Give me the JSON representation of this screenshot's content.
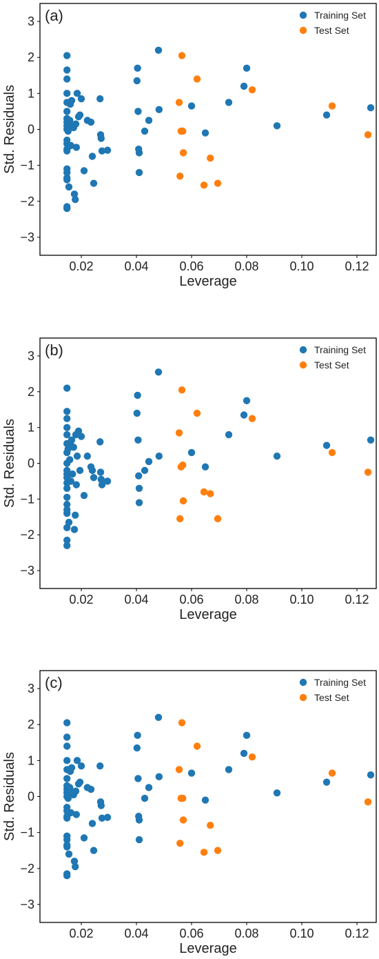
{
  "colors": {
    "training": "#1f77b4",
    "test": "#ff7f0e",
    "axis": "#000000"
  },
  "chart_data": [
    {
      "type": "scatter",
      "panel_label": "(a)",
      "xlabel": "Leverage",
      "ylabel": "Std. Residuals",
      "xlim": [
        0.005,
        0.127
      ],
      "ylim": [
        -3.5,
        3.5
      ],
      "xticks": [
        0.02,
        0.04,
        0.06,
        0.08,
        0.1,
        0.12
      ],
      "xtick_labels": [
        "0.02",
        "0.04",
        "0.06",
        "0.08",
        "0.10",
        "0.12"
      ],
      "yticks": [
        -3,
        -2,
        -1,
        0,
        1,
        2,
        3
      ],
      "ytick_labels": [
        "−3",
        "−2",
        "−1",
        "0",
        "1",
        "2",
        "3"
      ],
      "grid": false,
      "legend_position": "top-right",
      "series": [
        {
          "name": "Training Set",
          "color_key": "training",
          "x": [
            0.0148,
            0.0148,
            0.0148,
            0.0148,
            0.0148,
            0.0148,
            0.0148,
            0.0148,
            0.0148,
            0.0148,
            0.0148,
            0.0148,
            0.0148,
            0.0148,
            0.0148,
            0.0148,
            0.0148,
            0.0148,
            0.0148,
            0.0148,
            0.0152,
            0.0155,
            0.0158,
            0.016,
            0.0162,
            0.0165,
            0.0168,
            0.0172,
            0.0175,
            0.0178,
            0.018,
            0.0182,
            0.0185,
            0.019,
            0.0195,
            0.02,
            0.021,
            0.0222,
            0.0235,
            0.024,
            0.0245,
            0.0268,
            0.027,
            0.0272,
            0.0275,
            0.0295,
            0.0402,
            0.0404,
            0.0406,
            0.0408,
            0.041,
            0.041,
            0.043,
            0.0445,
            0.048,
            0.0482,
            0.06,
            0.065,
            0.0735,
            0.079,
            0.08,
            0.091,
            0.109,
            0.125
          ],
          "y": [
            2.05,
            1.65,
            1.4,
            1.0,
            0.75,
            0.5,
            0.3,
            0.2,
            0.1,
            0.0,
            -0.3,
            -0.4,
            -0.55,
            -0.6,
            -1.1,
            -1.2,
            -1.35,
            -1.4,
            -2.2,
            -2.15,
            -0.05,
            -1.6,
            0.25,
            0.7,
            -0.45,
            0.8,
            0.1,
            0.05,
            -1.8,
            -1.95,
            0.15,
            -0.5,
            1.0,
            0.35,
            0.4,
            0.85,
            -1.15,
            0.25,
            0.2,
            -0.75,
            -1.5,
            0.85,
            -0.15,
            -0.25,
            -0.6,
            -0.58,
            1.35,
            1.7,
            0.5,
            -0.55,
            -0.65,
            -1.2,
            -0.05,
            0.25,
            2.2,
            0.55,
            0.65,
            -0.1,
            0.75,
            1.2,
            1.7,
            0.1,
            0.4,
            0.6
          ]
        },
        {
          "name": "Test Set",
          "color_key": "test",
          "x": [
            0.0555,
            0.0558,
            0.0562,
            0.0565,
            0.0568,
            0.057,
            0.062,
            0.0645,
            0.0668,
            0.0695,
            0.082,
            0.111,
            0.124
          ],
          "y": [
            0.75,
            -1.3,
            -0.05,
            2.05,
            -0.05,
            -0.65,
            1.4,
            -1.55,
            -0.8,
            -1.5,
            1.1,
            0.65,
            -0.15
          ]
        }
      ]
    },
    {
      "type": "scatter",
      "panel_label": "(b)",
      "xlabel": "Leverage",
      "ylabel": "Std. Residuals",
      "xlim": [
        0.005,
        0.127
      ],
      "ylim": [
        -3.5,
        3.5
      ],
      "xticks": [
        0.02,
        0.04,
        0.06,
        0.08,
        0.1,
        0.12
      ],
      "xtick_labels": [
        "0.02",
        "0.04",
        "0.06",
        "0.08",
        "0.10",
        "0.12"
      ],
      "yticks": [
        -3,
        -2,
        -1,
        0,
        1,
        2,
        3
      ],
      "ytick_labels": [
        "−3",
        "−2",
        "−1",
        "0",
        "1",
        "2",
        "3"
      ],
      "grid": false,
      "legend_position": "top-right",
      "series": [
        {
          "name": "Training Set",
          "color_key": "training",
          "x": [
            0.0148,
            0.0148,
            0.0148,
            0.0148,
            0.0148,
            0.0148,
            0.0148,
            0.0148,
            0.0148,
            0.0148,
            0.0148,
            0.0148,
            0.0148,
            0.0148,
            0.0148,
            0.0148,
            0.0148,
            0.0148,
            0.0148,
            0.0148,
            0.0152,
            0.0155,
            0.0158,
            0.016,
            0.0162,
            0.0165,
            0.0168,
            0.0172,
            0.0175,
            0.0178,
            0.018,
            0.0182,
            0.0185,
            0.019,
            0.0195,
            0.02,
            0.021,
            0.0222,
            0.0235,
            0.024,
            0.0245,
            0.0268,
            0.027,
            0.0272,
            0.0275,
            0.0295,
            0.0402,
            0.0404,
            0.0406,
            0.0408,
            0.041,
            0.041,
            0.043,
            0.0445,
            0.048,
            0.0482,
            0.06,
            0.065,
            0.0735,
            0.079,
            0.08,
            0.091,
            0.109,
            0.125
          ],
          "y": [
            2.1,
            1.45,
            1.25,
            1.0,
            0.8,
            0.55,
            0.3,
            0.0,
            -0.2,
            -0.3,
            -0.4,
            -0.55,
            -0.7,
            -0.95,
            -1.15,
            -1.3,
            -1.4,
            -1.8,
            -2.15,
            -2.3,
            0.4,
            -1.65,
            0.1,
            0.55,
            -0.5,
            0.65,
            -0.3,
            0.45,
            -1.85,
            -1.45,
            0.8,
            -0.6,
            0.2,
            0.9,
            -0.2,
            0.75,
            -0.9,
            0.2,
            -0.1,
            -0.2,
            -0.4,
            0.6,
            -0.25,
            -0.45,
            -0.6,
            -0.5,
            1.4,
            1.9,
            0.65,
            -0.35,
            -0.7,
            -1.1,
            -0.2,
            0.05,
            2.55,
            0.2,
            0.3,
            -0.1,
            0.8,
            1.35,
            1.75,
            0.2,
            0.5,
            0.65
          ]
        },
        {
          "name": "Test Set",
          "color_key": "test",
          "x": [
            0.0555,
            0.0558,
            0.0562,
            0.0565,
            0.0568,
            0.057,
            0.062,
            0.0645,
            0.0668,
            0.0695,
            0.082,
            0.111,
            0.124
          ],
          "y": [
            0.85,
            -1.55,
            -0.1,
            2.05,
            -0.05,
            -1.05,
            1.4,
            -0.8,
            -0.85,
            -1.55,
            1.25,
            0.3,
            -0.25
          ]
        }
      ]
    },
    {
      "type": "scatter",
      "panel_label": "(c)",
      "xlabel": "Leverage",
      "ylabel": "Std. Residuals",
      "xlim": [
        0.005,
        0.127
      ],
      "ylim": [
        -3.5,
        3.5
      ],
      "xticks": [
        0.02,
        0.04,
        0.06,
        0.08,
        0.1,
        0.12
      ],
      "xtick_labels": [
        "0.02",
        "0.04",
        "0.06",
        "0.08",
        "0.10",
        "0.12"
      ],
      "yticks": [
        -3,
        -2,
        -1,
        0,
        1,
        2,
        3
      ],
      "ytick_labels": [
        "−3",
        "−2",
        "−1",
        "0",
        "1",
        "2",
        "3"
      ],
      "grid": false,
      "legend_position": "top-right",
      "series": [
        {
          "name": "Training Set",
          "color_key": "training",
          "x": [
            0.0148,
            0.0148,
            0.0148,
            0.0148,
            0.0148,
            0.0148,
            0.0148,
            0.0148,
            0.0148,
            0.0148,
            0.0148,
            0.0148,
            0.0148,
            0.0148,
            0.0148,
            0.0148,
            0.0148,
            0.0148,
            0.0148,
            0.0148,
            0.0152,
            0.0155,
            0.0158,
            0.016,
            0.0162,
            0.0165,
            0.0168,
            0.0172,
            0.0175,
            0.0178,
            0.018,
            0.0182,
            0.0185,
            0.019,
            0.0195,
            0.02,
            0.021,
            0.0222,
            0.0235,
            0.024,
            0.0245,
            0.0268,
            0.027,
            0.0272,
            0.0275,
            0.0295,
            0.0402,
            0.0404,
            0.0406,
            0.0408,
            0.041,
            0.041,
            0.043,
            0.0445,
            0.048,
            0.0482,
            0.06,
            0.065,
            0.0735,
            0.079,
            0.08,
            0.091,
            0.109,
            0.125
          ],
          "y": [
            2.05,
            1.65,
            1.4,
            1.0,
            0.75,
            0.5,
            0.3,
            0.2,
            0.1,
            0.0,
            -0.3,
            -0.4,
            -0.55,
            -0.6,
            -1.1,
            -1.2,
            -1.35,
            -1.4,
            -2.2,
            -2.15,
            -0.05,
            -1.6,
            0.25,
            0.7,
            -0.45,
            0.8,
            0.1,
            0.05,
            -1.8,
            -1.95,
            0.15,
            -0.5,
            1.0,
            0.35,
            0.4,
            0.85,
            -1.15,
            0.25,
            0.2,
            -0.75,
            -1.5,
            0.85,
            -0.15,
            -0.25,
            -0.6,
            -0.58,
            1.35,
            1.7,
            0.5,
            -0.55,
            -0.65,
            -1.2,
            -0.05,
            0.25,
            2.2,
            0.55,
            0.65,
            -0.1,
            0.75,
            1.2,
            1.7,
            0.1,
            0.4,
            0.6
          ]
        },
        {
          "name": "Test Set",
          "color_key": "test",
          "x": [
            0.0555,
            0.0558,
            0.0562,
            0.0565,
            0.0568,
            0.057,
            0.062,
            0.0645,
            0.0668,
            0.0695,
            0.082,
            0.111,
            0.124
          ],
          "y": [
            0.75,
            -1.3,
            -0.05,
            2.05,
            -0.05,
            -0.65,
            1.4,
            -1.55,
            -0.8,
            -1.5,
            1.1,
            0.65,
            -0.15
          ]
        }
      ]
    }
  ]
}
